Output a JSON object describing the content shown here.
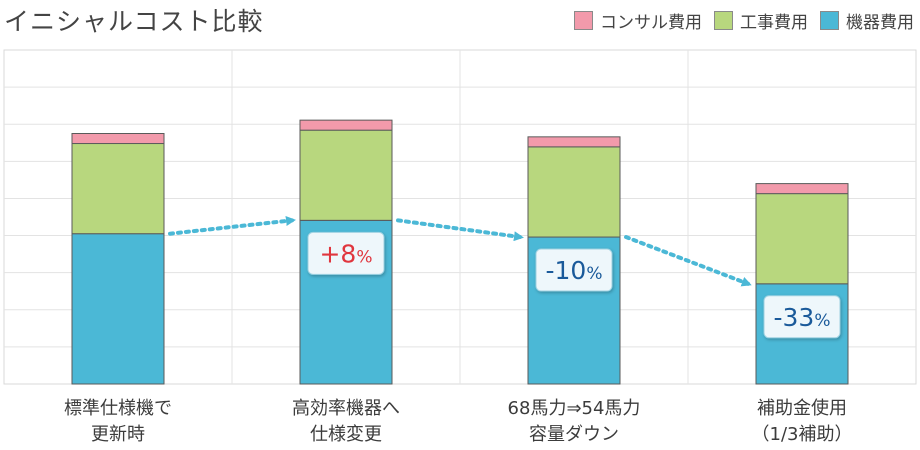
{
  "chart_data": {
    "type": "bar",
    "stacked": true,
    "title": "イニシャルコスト比較",
    "ylim": [
      0,
      100
    ],
    "grid": true,
    "legend_position": "top-right",
    "categories": [
      [
        "標準仕様機で",
        "更新時"
      ],
      [
        "高効率機器へ",
        "仕様変更"
      ],
      [
        "68馬力⇒54馬力",
        "容量ダウン"
      ],
      [
        "補助金使用",
        "（1/3補助）"
      ]
    ],
    "series": [
      {
        "name": "機器費用",
        "color": "#4bb8d6",
        "values": [
          45,
          49,
          44,
          30
        ]
      },
      {
        "name": "工事費用",
        "color": "#b8d77e",
        "values": [
          27,
          27,
          27,
          27
        ]
      },
      {
        "name": "コンサル費用",
        "color": "#f29aab",
        "values": [
          3,
          3,
          3,
          3
        ]
      }
    ],
    "legend_order": [
      "コンサル費用",
      "工事費用",
      "機器費用"
    ],
    "annotations": [
      {
        "index": 1,
        "sign": "+8",
        "unit": "%",
        "color": "#e0363e"
      },
      {
        "index": 2,
        "sign": "-10",
        "unit": "%",
        "color": "#1a5a9a"
      },
      {
        "index": 3,
        "sign": "-33",
        "unit": "%",
        "color": "#1a5a9a"
      }
    ],
    "arrow_color": "#4bb8d6"
  }
}
